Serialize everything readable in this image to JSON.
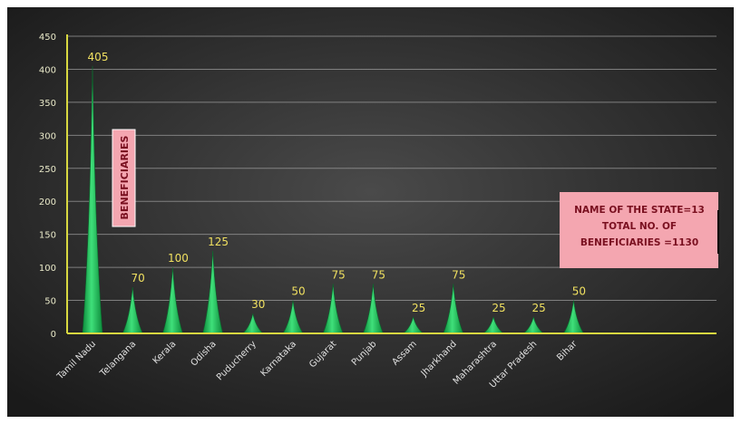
{
  "chart_data": {
    "type": "bar",
    "categories": [
      "Tamil Nadu",
      "Telangana",
      "Kerala",
      "Odisha",
      "Puducherry",
      "Karnataka",
      "Gujarat",
      "Punjab",
      "Assam",
      "Jharkhand",
      "Maharashtra",
      "Uttar Pradesh",
      "Bihar"
    ],
    "values": [
      405,
      70,
      100,
      125,
      30,
      50,
      75,
      75,
      25,
      75,
      25,
      25,
      50
    ],
    "data_labels": [
      "405",
      "70",
      "100",
      "125",
      "30",
      "50",
      "75",
      "75",
      "25",
      "75",
      "25",
      "25",
      "50"
    ],
    "ylim": [
      0,
      450
    ],
    "yticks": [
      0,
      50,
      100,
      150,
      200,
      250,
      300,
      350,
      400,
      450
    ],
    "ylabel": "BENEFICIARIES",
    "grid": true,
    "annotation_lines": [
      "NAME OF THE STATE=13",
      "TOTAL NO. OF",
      "BENEFICIARIES =1130"
    ],
    "colors": {
      "background": "#2c2c2c",
      "bar": "#1ec85a",
      "gridline": "#9a9a9a",
      "axis": "#d8d840",
      "label_box": "#f4a6b0",
      "label_text": "#7a1020",
      "data_label": "#f0e060"
    }
  }
}
